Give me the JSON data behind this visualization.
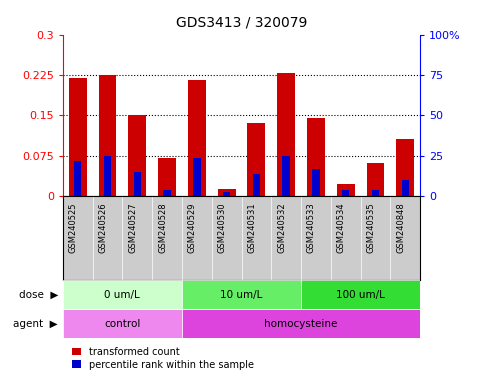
{
  "title": "GDS3413 / 320079",
  "samples": [
    "GSM240525",
    "GSM240526",
    "GSM240527",
    "GSM240528",
    "GSM240529",
    "GSM240530",
    "GSM240531",
    "GSM240532",
    "GSM240533",
    "GSM240534",
    "GSM240535",
    "GSM240848"
  ],
  "red_values": [
    0.22,
    0.225,
    0.15,
    0.07,
    0.215,
    0.013,
    0.135,
    0.228,
    0.145,
    0.022,
    0.062,
    0.105
  ],
  "blue_values": [
    0.065,
    0.075,
    0.045,
    0.01,
    0.07,
    0.008,
    0.04,
    0.075,
    0.05,
    0.01,
    0.01,
    0.03
  ],
  "ylim_left": [
    0,
    0.3
  ],
  "yticks_left": [
    0,
    0.075,
    0.15,
    0.225,
    0.3
  ],
  "ytick_labels_left": [
    "0",
    "0.075",
    "0.15",
    "0.225",
    "0.3"
  ],
  "ylim_right": [
    0,
    100
  ],
  "yticks_right": [
    0,
    25,
    50,
    75,
    100
  ],
  "ytick_labels_right": [
    "0",
    "25",
    "50",
    "75",
    "100%"
  ],
  "dose_groups": [
    {
      "label": "0 um/L",
      "start": 0,
      "end": 4
    },
    {
      "label": "10 um/L",
      "start": 4,
      "end": 8
    },
    {
      "label": "100 um/L",
      "start": 8,
      "end": 12
    }
  ],
  "dose_colors": [
    "#CCFFCC",
    "#66EE66",
    "#33DD33"
  ],
  "agent_groups": [
    {
      "label": "control",
      "start": 0,
      "end": 4
    },
    {
      "label": "homocysteine",
      "start": 4,
      "end": 12
    }
  ],
  "agent_colors": [
    "#EE88EE",
    "#DD44DD"
  ],
  "bar_color_red": "#CC0000",
  "bar_color_blue": "#0000CC",
  "bar_width": 0.6,
  "blue_bar_width": 0.25,
  "tick_area_bg": "#CCCCCC",
  "legend_items": [
    {
      "color": "#CC0000",
      "label": "transformed count"
    },
    {
      "color": "#0000CC",
      "label": "percentile rank within the sample"
    }
  ]
}
